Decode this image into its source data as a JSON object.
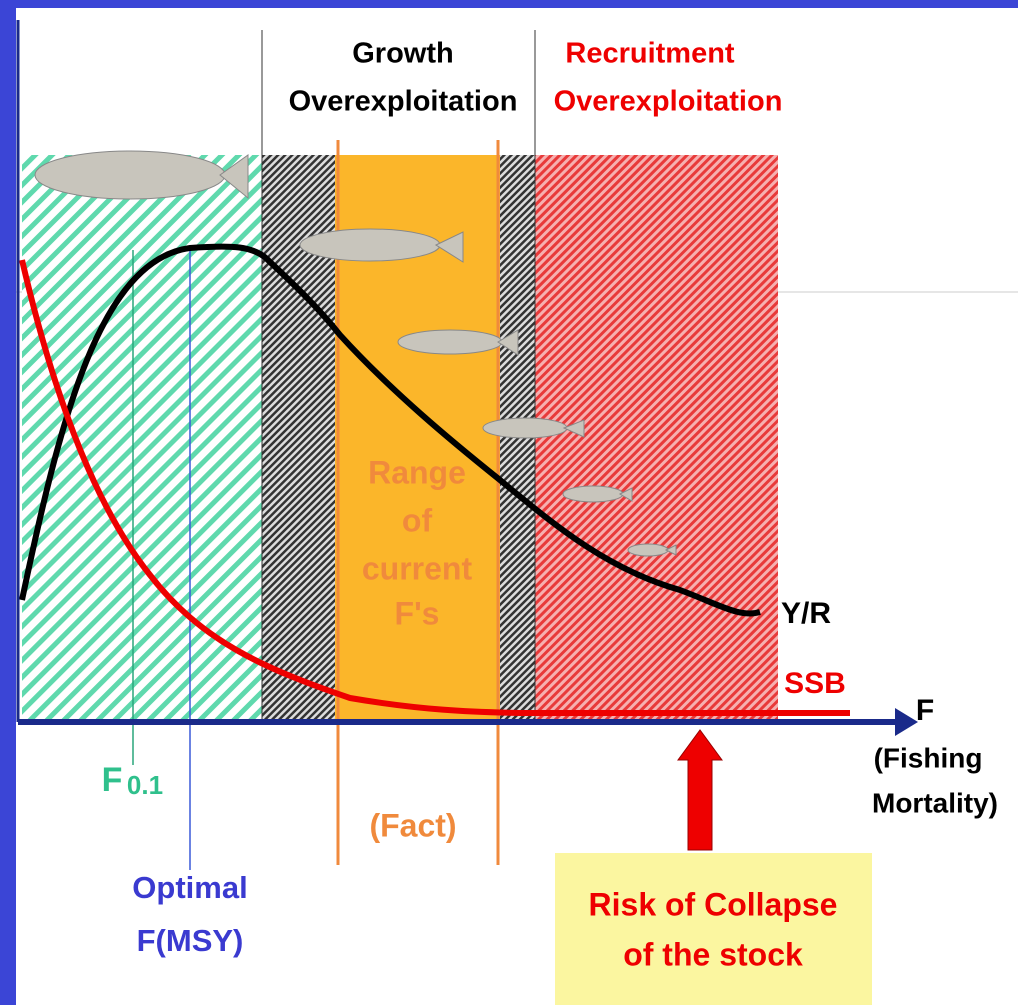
{
  "header": {
    "left": [
      "Growth",
      "Overexploitation"
    ],
    "right": [
      "Recruitment",
      "Overexploitation"
    ]
  },
  "range_label": [
    "Range",
    "of",
    "current",
    "F's"
  ],
  "curves": {
    "yield": "Y/R",
    "biomass": "SSB"
  },
  "axis": {
    "symbol": "F",
    "description": [
      "(Fishing",
      "Mortality)"
    ]
  },
  "markers": {
    "f01": {
      "base": "F",
      "subscript": "0.1"
    },
    "optimal": [
      "Optimal",
      "F(MSY)"
    ],
    "fact": "(Fact)"
  },
  "risk": [
    "Risk of Collapse",
    "of the stock"
  ]
}
